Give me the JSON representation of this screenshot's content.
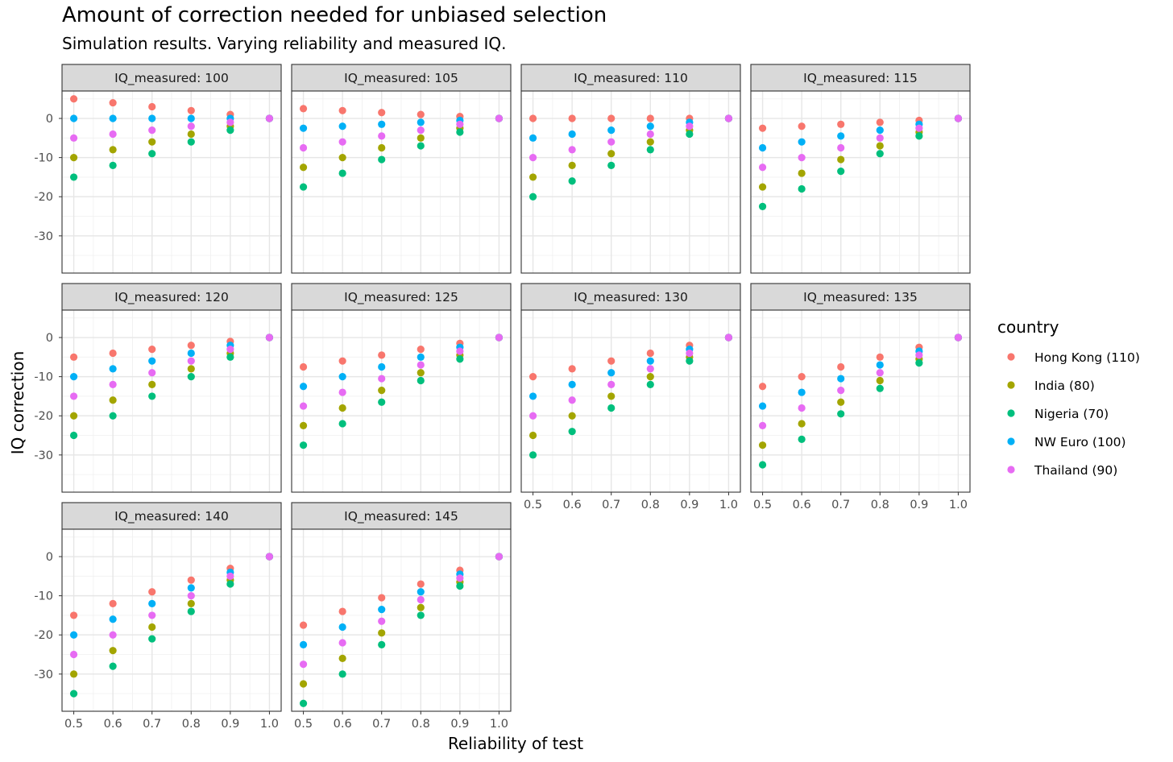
{
  "chart_data": {
    "type": "scatter",
    "title": "Amount of correction needed for unbiased selection",
    "subtitle": "Simulation results. Varying reliability and measured IQ.",
    "xlabel": "Reliability of test",
    "ylabel": "IQ correction",
    "facet_label_prefix": "IQ_measured: ",
    "xlim": [
      0.47,
      1.03
    ],
    "ylim": [
      -39.5,
      7
    ],
    "x_ticks": [
      0.5,
      0.6,
      0.7,
      0.8,
      0.9,
      1.0
    ],
    "x_tick_labels": [
      "0.5",
      "0.6",
      "0.7",
      "0.8",
      "0.9",
      "1.0"
    ],
    "y_ticks": [
      0,
      -10,
      -20,
      -30
    ],
    "y_tick_labels": [
      "0",
      "-10",
      "-20",
      "-30"
    ],
    "grid": true,
    "legend": {
      "title": "country",
      "position": "right",
      "entries": [
        {
          "name": "Hong Kong (110)",
          "country_iq": 110,
          "color": "#F8766D"
        },
        {
          "name": "India (80)",
          "country_iq": 80,
          "color": "#A3A500"
        },
        {
          "name": "Nigeria (70)",
          "country_iq": 70,
          "color": "#00BF7D"
        },
        {
          "name": "NW Euro (100)",
          "country_iq": 100,
          "color": "#00B0F6"
        },
        {
          "name": "Thailand (90)",
          "country_iq": 90,
          "color": "#E76BF3"
        }
      ]
    },
    "x": [
      0.5,
      0.6,
      0.7,
      0.8,
      0.9,
      1.0
    ],
    "panels": [
      {
        "label": "100",
        "series": {
          "Hong Kong (110)": [
            5,
            4,
            3,
            2,
            1,
            0
          ],
          "India (80)": [
            -10,
            -8,
            -6,
            -4,
            -2,
            0
          ],
          "Nigeria (70)": [
            -15,
            -12,
            -9,
            -6,
            -3,
            0
          ],
          "NW Euro (100)": [
            0,
            0,
            0,
            0,
            0,
            0
          ],
          "Thailand (90)": [
            -5,
            -4,
            -3,
            -2,
            -1,
            0
          ]
        }
      },
      {
        "label": "105",
        "series": {
          "Hong Kong (110)": [
            2.5,
            2,
            1.5,
            1,
            0.5,
            0
          ],
          "India (80)": [
            -12.5,
            -10,
            -7.5,
            -5,
            -2.5,
            0
          ],
          "Nigeria (70)": [
            -17.5,
            -14,
            -10.5,
            -7,
            -3.5,
            0
          ],
          "NW Euro (100)": [
            -2.5,
            -2,
            -1.5,
            -1,
            -0.5,
            0
          ],
          "Thailand (90)": [
            -7.5,
            -6,
            -4.5,
            -3,
            -1.5,
            0
          ]
        }
      },
      {
        "label": "110",
        "series": {
          "Hong Kong (110)": [
            0,
            0,
            0,
            0,
            0,
            0
          ],
          "India (80)": [
            -15,
            -12,
            -9,
            -6,
            -3,
            0
          ],
          "Nigeria (70)": [
            -20,
            -16,
            -12,
            -8,
            -4,
            0
          ],
          "NW Euro (100)": [
            -5,
            -4,
            -3,
            -2,
            -1,
            0
          ],
          "Thailand (90)": [
            -10,
            -8,
            -6,
            -4,
            -2,
            0
          ]
        }
      },
      {
        "label": "115",
        "series": {
          "Hong Kong (110)": [
            -2.5,
            -2,
            -1.5,
            -1,
            -0.5,
            0
          ],
          "India (80)": [
            -17.5,
            -14,
            -10.5,
            -7,
            -3.5,
            0
          ],
          "Nigeria (70)": [
            -22.5,
            -18,
            -13.5,
            -9,
            -4.5,
            0
          ],
          "NW Euro (100)": [
            -7.5,
            -6,
            -4.5,
            -3,
            -1.5,
            0
          ],
          "Thailand (90)": [
            -12.5,
            -10,
            -7.5,
            -5,
            -2.5,
            0
          ]
        }
      },
      {
        "label": "120",
        "series": {
          "Hong Kong (110)": [
            -5,
            -4,
            -3,
            -2,
            -1,
            0
          ],
          "India (80)": [
            -20,
            -16,
            -12,
            -8,
            -4,
            0
          ],
          "Nigeria (70)": [
            -25,
            -20,
            -15,
            -10,
            -5,
            0
          ],
          "NW Euro (100)": [
            -10,
            -8,
            -6,
            -4,
            -2,
            0
          ],
          "Thailand (90)": [
            -15,
            -12,
            -9,
            -6,
            -3,
            0
          ]
        }
      },
      {
        "label": "125",
        "series": {
          "Hong Kong (110)": [
            -7.5,
            -6,
            -4.5,
            -3,
            -1.5,
            0
          ],
          "India (80)": [
            -22.5,
            -18,
            -13.5,
            -9,
            -4.5,
            0
          ],
          "Nigeria (70)": [
            -27.5,
            -22,
            -16.5,
            -11,
            -5.5,
            0
          ],
          "NW Euro (100)": [
            -12.5,
            -10,
            -7.5,
            -5,
            -2.5,
            0
          ],
          "Thailand (90)": [
            -17.5,
            -14,
            -10.5,
            -7,
            -3.5,
            0
          ]
        }
      },
      {
        "label": "130",
        "series": {
          "Hong Kong (110)": [
            -10,
            -8,
            -6,
            -4,
            -2,
            0
          ],
          "India (80)": [
            -25,
            -20,
            -15,
            -10,
            -5,
            0
          ],
          "Nigeria (70)": [
            -30,
            -24,
            -18,
            -12,
            -6,
            0
          ],
          "NW Euro (100)": [
            -15,
            -12,
            -9,
            -6,
            -3,
            0
          ],
          "Thailand (90)": [
            -20,
            -16,
            -12,
            -8,
            -4,
            0
          ]
        }
      },
      {
        "label": "135",
        "series": {
          "Hong Kong (110)": [
            -12.5,
            -10,
            -7.5,
            -5,
            -2.5,
            0
          ],
          "India (80)": [
            -27.5,
            -22,
            -16.5,
            -11,
            -5.5,
            0
          ],
          "Nigeria (70)": [
            -32.5,
            -26,
            -19.5,
            -13,
            -6.5,
            0
          ],
          "NW Euro (100)": [
            -17.5,
            -14,
            -10.5,
            -7,
            -3.5,
            0
          ],
          "Thailand (90)": [
            -22.5,
            -18,
            -13.5,
            -9,
            -4.5,
            0
          ]
        }
      },
      {
        "label": "140",
        "series": {
          "Hong Kong (110)": [
            -15,
            -12,
            -9,
            -6,
            -3,
            0
          ],
          "India (80)": [
            -30,
            -24,
            -18,
            -12,
            -6,
            0
          ],
          "Nigeria (70)": [
            -35,
            -28,
            -21,
            -14,
            -7,
            0
          ],
          "NW Euro (100)": [
            -20,
            -16,
            -12,
            -8,
            -4,
            0
          ],
          "Thailand (90)": [
            -25,
            -20,
            -15,
            -10,
            -5,
            0
          ]
        }
      },
      {
        "label": "145",
        "series": {
          "Hong Kong (110)": [
            -17.5,
            -14,
            -10.5,
            -7,
            -3.5,
            0
          ],
          "India (80)": [
            -32.5,
            -26,
            -19.5,
            -13,
            -6.5,
            0
          ],
          "Nigeria (70)": [
            -37.5,
            -30,
            -22.5,
            -15,
            -7.5,
            0
          ],
          "NW Euro (100)": [
            -22.5,
            -18,
            -13.5,
            -9,
            -4.5,
            0
          ],
          "Thailand (90)": [
            -27.5,
            -22,
            -16.5,
            -11,
            -5.5,
            0
          ]
        }
      }
    ]
  }
}
